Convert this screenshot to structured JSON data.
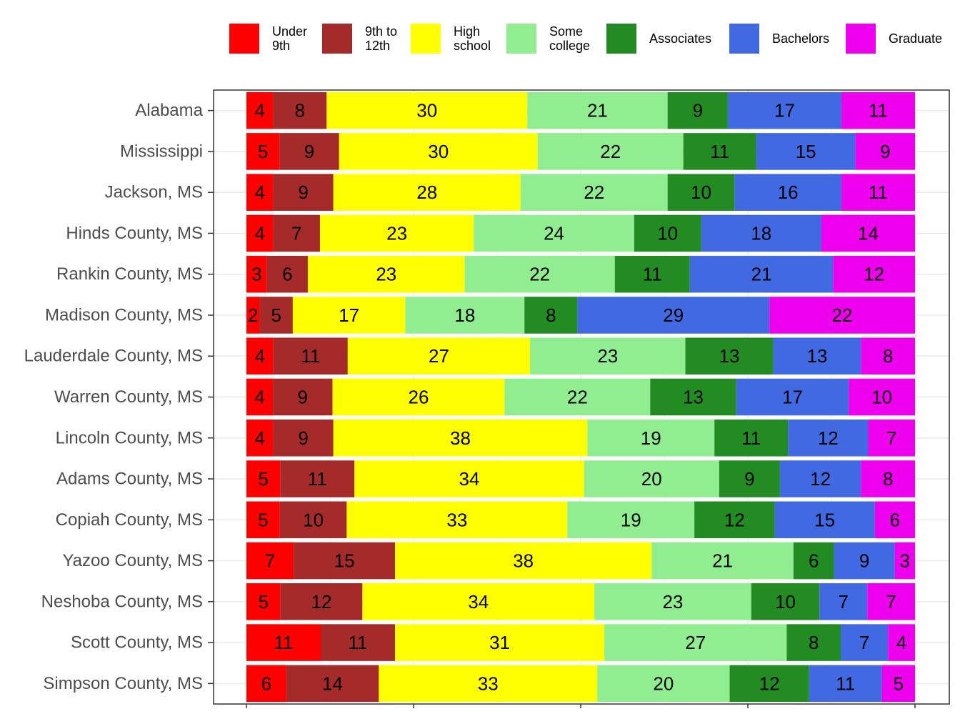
{
  "chart_data": {
    "type": "bar",
    "orientation": "horizontal",
    "stacked": true,
    "stacking": "percent",
    "title": "",
    "xlabel": "",
    "ylabel": "",
    "xlim": [
      0,
      100
    ],
    "grid": true,
    "legend_position": "top",
    "categories": [
      "Alabama",
      "Mississippi",
      "Jackson, MS",
      "Hinds County, MS",
      "Rankin County, MS",
      "Madison County, MS",
      "Lauderdale County, MS",
      "Warren County, MS",
      "Lincoln County, MS",
      "Adams County, MS",
      "Copiah County, MS",
      "Yazoo County, MS",
      "Neshoba County, MS",
      "Scott County, MS",
      "Simpson County, MS"
    ],
    "series": [
      {
        "name": "Under 9th",
        "legend_lines": [
          "Under",
          "9th"
        ],
        "color": "#ff0000",
        "values": [
          4,
          5,
          4,
          4,
          3,
          2,
          4,
          4,
          4,
          5,
          5,
          7,
          5,
          11,
          6
        ]
      },
      {
        "name": "9th to 12th",
        "legend_lines": [
          "9th to",
          "12th"
        ],
        "color": "#a52a2a",
        "values": [
          8,
          9,
          9,
          7,
          6,
          5,
          11,
          9,
          9,
          11,
          10,
          15,
          12,
          11,
          14
        ]
      },
      {
        "name": "High school",
        "legend_lines": [
          "High",
          "school"
        ],
        "color": "#ffff00",
        "values": [
          30,
          30,
          28,
          23,
          23,
          17,
          27,
          26,
          38,
          34,
          33,
          38,
          34,
          31,
          33
        ]
      },
      {
        "name": "Some college",
        "legend_lines": [
          "Some",
          "college"
        ],
        "color": "#90ee90",
        "values": [
          21,
          22,
          22,
          24,
          22,
          18,
          23,
          22,
          19,
          20,
          19,
          21,
          23,
          27,
          20
        ]
      },
      {
        "name": "Associates",
        "legend_lines": [
          "Associates"
        ],
        "color": "#228b22",
        "values": [
          9,
          11,
          10,
          10,
          11,
          8,
          13,
          13,
          11,
          9,
          12,
          6,
          10,
          8,
          12
        ]
      },
      {
        "name": "Bachelors",
        "legend_lines": [
          "Bachelors"
        ],
        "color": "#4169e1",
        "values": [
          17,
          15,
          16,
          18,
          21,
          29,
          13,
          17,
          12,
          12,
          15,
          9,
          7,
          7,
          11
        ]
      },
      {
        "name": "Graduate",
        "legend_lines": [
          "Graduate"
        ],
        "color": "#ee00ee",
        "values": [
          11,
          9,
          11,
          14,
          12,
          22,
          8,
          10,
          7,
          8,
          6,
          3,
          7,
          4,
          5
        ]
      }
    ]
  }
}
